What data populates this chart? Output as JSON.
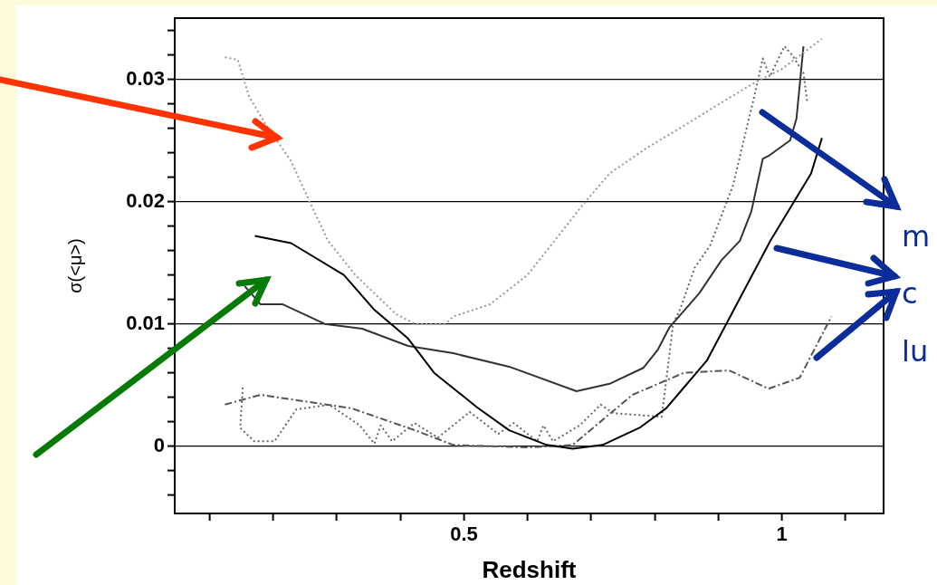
{
  "chart_data": {
    "type": "line",
    "xlabel": "Redshift",
    "ylabel": "σ(<μ>)",
    "xlim": [
      0.045,
      1.16
    ],
    "ylim": [
      -0.0055,
      0.035
    ],
    "xticks": [
      {
        "value": 0.1,
        "label": null
      },
      {
        "value": 0.2,
        "label": null
      },
      {
        "value": 0.3,
        "label": null
      },
      {
        "value": 0.4,
        "label": null
      },
      {
        "value": 0.5,
        "label": "0.5"
      },
      {
        "value": 0.6,
        "label": null
      },
      {
        "value": 0.7,
        "label": null
      },
      {
        "value": 0.8,
        "label": null
      },
      {
        "value": 0.9,
        "label": null
      },
      1,
      {
        "value": 1.1,
        "label": null
      }
    ],
    "yticks": [
      {
        "value": -0.004,
        "label": null
      },
      {
        "value": -0.002,
        "label": null
      },
      0,
      {
        "value": 0.002,
        "label": null
      },
      {
        "value": 0.004,
        "label": null
      },
      {
        "value": 0.006,
        "label": null
      },
      {
        "value": 0.008,
        "label": null
      },
      0.01,
      {
        "value": 0.012,
        "label": null
      },
      {
        "value": 0.014,
        "label": null
      },
      {
        "value": 0.016,
        "label": null
      },
      {
        "value": 0.018,
        "label": null
      },
      0.02,
      {
        "value": 0.022,
        "label": null
      },
      {
        "value": 0.024,
        "label": null
      },
      {
        "value": 0.026,
        "label": null
      },
      {
        "value": 0.028,
        "label": null
      },
      0.03,
      {
        "value": 0.032,
        "label": null
      },
      {
        "value": 0.034,
        "label": null
      }
    ],
    "grid": "y",
    "legend": false,
    "marker": "none",
    "series": [
      {
        "color": "#999999",
        "line_style": "dotted",
        "x": [
          0.124,
          0.144,
          0.162,
          0.187,
          0.228,
          0.258,
          0.286,
          0.329,
          0.365,
          0.393,
          0.423,
          0.471,
          0.483,
          0.541,
          0.6,
          0.647,
          0.688,
          0.729,
          0.788,
          0.846,
          0.905,
          0.963,
          0.999,
          1.063
        ],
        "values": [
          0.0318,
          0.0316,
          0.0286,
          0.0264,
          0.0233,
          0.0199,
          0.0168,
          0.014,
          0.0122,
          0.0108,
          0.01,
          0.01,
          0.0106,
          0.0116,
          0.014,
          0.0171,
          0.0198,
          0.0223,
          0.0244,
          0.0262,
          0.0281,
          0.0299,
          0.0308,
          0.0333
        ]
      },
      {
        "color": "#000000",
        "line_style": "solid",
        "x": [
          0.171,
          0.228,
          0.311,
          0.358,
          0.412,
          0.453,
          0.52,
          0.571,
          0.63,
          0.671,
          0.718,
          0.776,
          0.818,
          0.882,
          0.929,
          0.982,
          1.046,
          1.063
        ],
        "values": [
          0.0172,
          0.0166,
          0.014,
          0.0112,
          0.0088,
          0.006,
          0.0032,
          0.0013,
          0.0001,
          -0.0002,
          0.0001,
          0.0015,
          0.0031,
          0.007,
          0.0116,
          0.0168,
          0.0223,
          0.0252
        ]
      },
      {
        "color": "#333333",
        "line_style": "solid",
        "x": [
          0.155,
          0.18,
          0.215,
          0.281,
          0.34,
          0.412,
          0.483,
          0.571,
          0.677,
          0.729,
          0.782,
          0.805,
          0.823,
          0.87,
          0.905,
          0.934,
          0.952,
          0.97,
          0.981,
          1.013,
          1.023,
          1.034
        ],
        "values": [
          0.0131,
          0.0116,
          0.0116,
          0.01,
          0.0096,
          0.0082,
          0.0076,
          0.0065,
          0.0045,
          0.0051,
          0.0064,
          0.0079,
          0.0097,
          0.0125,
          0.0152,
          0.0168,
          0.0192,
          0.0235,
          0.0238,
          0.025,
          0.0268,
          0.0327
        ]
      },
      {
        "color": "#555555",
        "line_style": "dashed",
        "x": [
          0.124,
          0.18,
          0.323,
          0.423,
          0.483,
          0.6,
          0.671,
          0.765,
          0.846,
          0.917,
          0.979,
          1.028,
          1.078
        ],
        "values": [
          0.0034,
          0.0042,
          0.0031,
          0.0013,
          0.0001,
          -0.0001,
          0.0001,
          0.0042,
          0.006,
          0.0062,
          0.0047,
          0.0056,
          0.0106
        ]
      },
      {
        "color": "#666666",
        "line_style": "dotted",
        "x": [
          0.152,
          0.148,
          0.17,
          0.202,
          0.236,
          0.288,
          0.336,
          0.359,
          0.369,
          0.387,
          0.422,
          0.459,
          0.509,
          0.554,
          0.578,
          0.615,
          0.625,
          0.64,
          0.682,
          0.715,
          0.735,
          0.811,
          0.829,
          0.84,
          0.863,
          0.887,
          0.923,
          0.957,
          0.97,
          0.981,
          1.004,
          1.016,
          1.034,
          1.04
        ],
        "values": [
          0.0048,
          0.0015,
          0.0004,
          0.0004,
          0.003,
          0.0034,
          0.0017,
          0.0002,
          0.0017,
          0.0004,
          0.0019,
          0.0007,
          0.0028,
          0.001,
          0.0019,
          0.0004,
          0.0017,
          0.0004,
          0.0017,
          0.0034,
          0.0027,
          0.0024,
          0.01,
          0.0112,
          0.0146,
          0.0164,
          0.0213,
          0.0287,
          0.0317,
          0.0302,
          0.0327,
          0.032,
          0.0305,
          0.0281
        ]
      }
    ],
    "annotations": [
      "m",
      "c",
      "lu"
    ]
  }
}
